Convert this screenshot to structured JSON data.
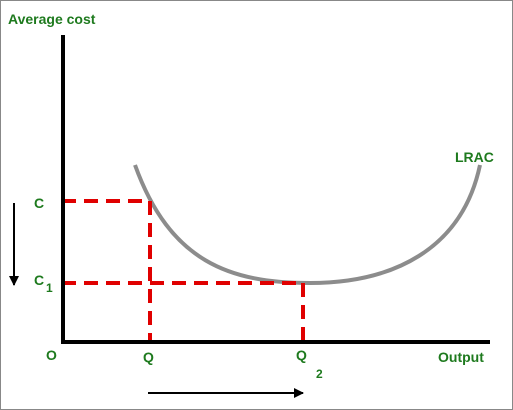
{
  "axis_labels": {
    "y": "Average cost",
    "x": "Output",
    "origin": "O"
  },
  "curve_label": "LRAC",
  "y_points": [
    {
      "base": "C"
    },
    {
      "base": "C",
      "sub": "1"
    }
  ],
  "x_points": [
    {
      "base": "Q"
    },
    {
      "base": "Q",
      "sub": "2"
    }
  ]
}
